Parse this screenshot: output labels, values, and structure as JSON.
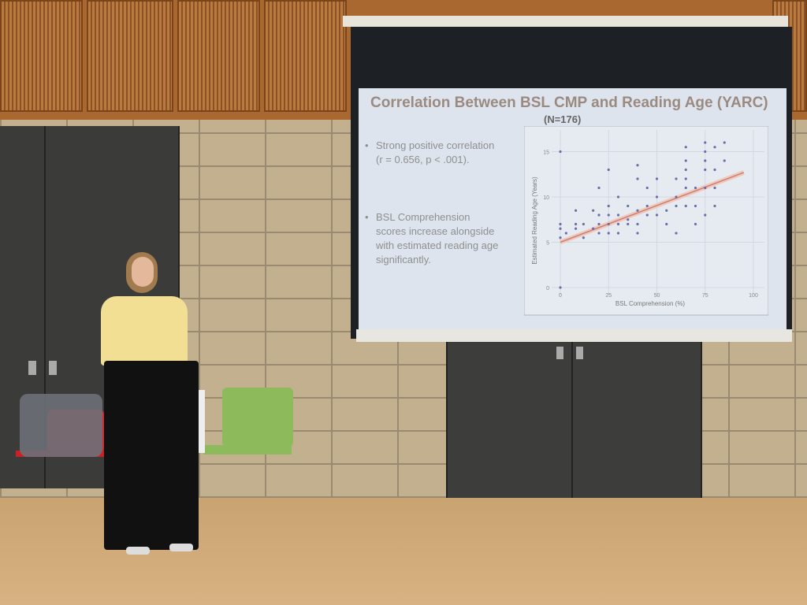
{
  "slide": {
    "title": "Correlation Between BSL CMP and Reading Age (YARC)",
    "subtitle": "(N=176)",
    "bullets": [
      "Strong positive correlation (r = 0.656, p < .001).",
      "BSL Comprehension scores increase alongside with estimated reading age significantly."
    ]
  },
  "chart_data": {
    "type": "scatter",
    "xlabel": "BSL Comprehension (%)",
    "ylabel": "Estimated Reading Age (Years)",
    "xlim": [
      0,
      100
    ],
    "ylim": [
      0,
      16
    ],
    "xticks": [
      "0",
      "25",
      "50",
      "75",
      "100"
    ],
    "yticks": [
      "0",
      "5",
      "10",
      "15"
    ],
    "grid": true,
    "points": [
      [
        0,
        15
      ],
      [
        0,
        0
      ],
      [
        0,
        7
      ],
      [
        0,
        6.5
      ],
      [
        0,
        5.5
      ],
      [
        3,
        6
      ],
      [
        8,
        8.5
      ],
      [
        8,
        7
      ],
      [
        8,
        6.5
      ],
      [
        12,
        7
      ],
      [
        12,
        5.5
      ],
      [
        17,
        8.5
      ],
      [
        17,
        6.5
      ],
      [
        20,
        11
      ],
      [
        20,
        8
      ],
      [
        20,
        7
      ],
      [
        20,
        6
      ],
      [
        25,
        13
      ],
      [
        25,
        9
      ],
      [
        25,
        8
      ],
      [
        25,
        7
      ],
      [
        25,
        6
      ],
      [
        30,
        10
      ],
      [
        30,
        8
      ],
      [
        30,
        7
      ],
      [
        30,
        6
      ],
      [
        35,
        9
      ],
      [
        35,
        7.5
      ],
      [
        35,
        7
      ],
      [
        40,
        13.5
      ],
      [
        40,
        12
      ],
      [
        40,
        8.5
      ],
      [
        40,
        7
      ],
      [
        40,
        6
      ],
      [
        45,
        11
      ],
      [
        45,
        9
      ],
      [
        45,
        8
      ],
      [
        50,
        12
      ],
      [
        50,
        10
      ],
      [
        50,
        8
      ],
      [
        55,
        8.5
      ],
      [
        55,
        7
      ],
      [
        60,
        12
      ],
      [
        60,
        10
      ],
      [
        60,
        9
      ],
      [
        60,
        6
      ],
      [
        65,
        15.5
      ],
      [
        65,
        14
      ],
      [
        65,
        13
      ],
      [
        65,
        12
      ],
      [
        65,
        11
      ],
      [
        65,
        9
      ],
      [
        70,
        11
      ],
      [
        70,
        9
      ],
      [
        70,
        7
      ],
      [
        75,
        16
      ],
      [
        75,
        15
      ],
      [
        75,
        14
      ],
      [
        75,
        13
      ],
      [
        75,
        11
      ],
      [
        75,
        8
      ],
      [
        80,
        15.5
      ],
      [
        80,
        13
      ],
      [
        80,
        11
      ],
      [
        80,
        9
      ],
      [
        85,
        16
      ],
      [
        85,
        14
      ]
    ],
    "fit_line": [
      [
        0,
        5
      ],
      [
        95,
        12.7
      ]
    ],
    "colors": {
      "points": "#6b6fa8",
      "fit": "#c9826e"
    }
  }
}
